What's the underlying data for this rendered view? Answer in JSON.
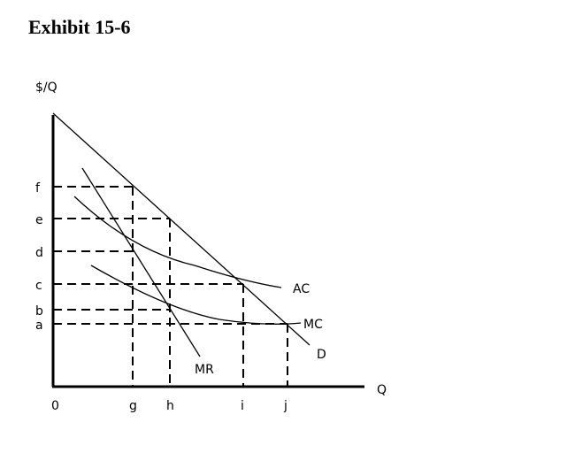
{
  "title": "Exhibit 15-6",
  "diagram": {
    "y_axis_label": "$/Q",
    "x_axis_label": "Q",
    "origin_label": "0",
    "price_levels": [
      "f",
      "e",
      "d",
      "c",
      "b",
      "a"
    ],
    "quantity_levels": [
      "g",
      "h",
      "i",
      "j"
    ],
    "curve_labels": {
      "ac": "AC",
      "mc": "MC",
      "d": "D",
      "mr": "MR"
    }
  }
}
